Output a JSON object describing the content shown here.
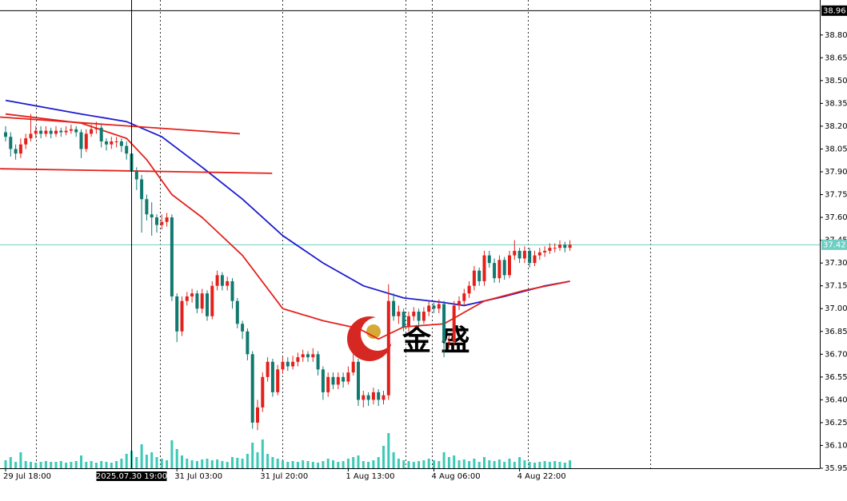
{
  "chart_data": {
    "type": "candlestick",
    "categories": [
      "29 Jul 18:00",
      null,
      null,
      null,
      null,
      null,
      null,
      null,
      null,
      null,
      null,
      null,
      null,
      null,
      null,
      null,
      null,
      null,
      null,
      null,
      null,
      null,
      null,
      null,
      null,
      null,
      null,
      null,
      null,
      null,
      null,
      null,
      null,
      null,
      "31 Jul 03:00",
      null,
      null,
      null,
      null,
      null,
      null,
      null,
      null,
      null,
      null,
      null,
      null,
      null,
      null,
      null,
      null,
      "31 Jul 20:00",
      null,
      null,
      null,
      null,
      null,
      null,
      null,
      null,
      null,
      null,
      null,
      null,
      null,
      null,
      null,
      null,
      "1 Aug 13:00",
      null,
      null,
      null,
      null,
      null,
      null,
      null,
      null,
      null,
      null,
      null,
      null,
      null,
      null,
      null,
      null,
      "4 Aug 06:00",
      null,
      null,
      null,
      null,
      null,
      null,
      null,
      null,
      null,
      null,
      null,
      null,
      null,
      null,
      null,
      null,
      "4 Aug 22:00",
      null,
      null,
      null,
      null,
      null,
      null,
      null,
      null,
      null,
      null
    ],
    "open": [
      38.16,
      38.13,
      38.05,
      38.02,
      38.08,
      38.12,
      38.15,
      38.17,
      38.15,
      38.17,
      38.15,
      38.17,
      38.16,
      38.17,
      38.18,
      38.16,
      38.05,
      38.15,
      38.18,
      38.19,
      38.1,
      38.08,
      38.1,
      38.1,
      38.07,
      38.02,
      37.9,
      37.85,
      37.72,
      37.62,
      37.6,
      37.55,
      37.57,
      37.6,
      37.08,
      36.85,
      37.05,
      37.08,
      37.1,
      37.0,
      37.1,
      36.95,
      37.15,
      37.22,
      37.15,
      37.18,
      37.05,
      36.9,
      36.85,
      36.7,
      36.25,
      36.35,
      36.55,
      36.65,
      36.45,
      36.6,
      36.65,
      36.62,
      36.65,
      36.68,
      36.7,
      36.68,
      36.7,
      36.6,
      36.45,
      36.55,
      36.5,
      36.55,
      36.52,
      36.58,
      36.65,
      36.4,
      36.43,
      36.4,
      36.45,
      36.4,
      36.43,
      37.05,
      36.95,
      36.98,
      36.88,
      36.95,
      36.98,
      36.92,
      36.98,
      37.02,
      37.0,
      37.03,
      36.78,
      36.78,
      37.02,
      37.05,
      37.1,
      37.15,
      37.25,
      37.18,
      37.35,
      37.3,
      37.2,
      37.32,
      37.22,
      37.35,
      37.38,
      37.33,
      37.38,
      37.3,
      37.35,
      37.37,
      37.38,
      37.4,
      37.4,
      37.42,
      37.4
    ],
    "high": [
      38.2,
      38.16,
      38.08,
      38.12,
      38.15,
      38.28,
      38.2,
      38.2,
      38.2,
      38.19,
      38.2,
      38.19,
      38.2,
      38.21,
      38.2,
      38.18,
      38.18,
      38.21,
      38.23,
      38.21,
      38.12,
      38.13,
      38.13,
      38.12,
      38.1,
      38.05,
      37.93,
      37.88,
      37.75,
      37.7,
      37.62,
      37.62,
      37.63,
      37.62,
      37.1,
      37.08,
      37.11,
      37.13,
      37.12,
      37.13,
      37.12,
      37.18,
      37.25,
      37.24,
      37.21,
      37.2,
      37.07,
      36.92,
      36.87,
      36.72,
      36.4,
      36.58,
      36.68,
      36.67,
      36.63,
      36.68,
      36.68,
      36.69,
      36.71,
      36.73,
      36.72,
      36.74,
      36.72,
      36.62,
      36.58,
      36.58,
      36.58,
      36.58,
      36.62,
      36.7,
      36.67,
      36.46,
      36.45,
      36.48,
      36.47,
      36.46,
      37.16,
      37.1,
      37.02,
      37.0,
      36.98,
      37.01,
      37.0,
      37.01,
      37.05,
      37.04,
      37.06,
      37.05,
      36.82,
      37.05,
      37.08,
      37.13,
      37.18,
      37.28,
      37.27,
      37.38,
      37.38,
      37.33,
      37.35,
      37.34,
      37.38,
      37.45,
      37.4,
      37.41,
      37.4,
      37.38,
      37.4,
      37.41,
      37.43,
      37.43,
      37.45,
      37.44,
      37.45
    ],
    "low": [
      38.1,
      38.0,
      37.98,
      37.99,
      38.05,
      38.1,
      38.12,
      38.12,
      38.13,
      38.12,
      38.13,
      38.13,
      38.14,
      38.15,
      38.13,
      37.99,
      38.03,
      38.13,
      38.15,
      38.06,
      38.04,
      38.05,
      38.06,
      38.03,
      37.98,
      37.85,
      37.78,
      37.5,
      37.58,
      37.48,
      37.5,
      37.52,
      37.54,
      37.05,
      36.78,
      36.82,
      37.02,
      37.04,
      36.97,
      36.97,
      36.92,
      36.93,
      37.12,
      37.12,
      37.12,
      37.0,
      36.87,
      36.8,
      36.66,
      36.21,
      36.2,
      36.32,
      36.52,
      36.42,
      36.43,
      36.57,
      36.59,
      36.6,
      36.62,
      36.65,
      36.65,
      36.65,
      36.56,
      36.4,
      36.42,
      36.47,
      36.47,
      36.48,
      36.5,
      36.56,
      36.36,
      36.35,
      36.36,
      36.37,
      36.36,
      36.37,
      36.4,
      36.92,
      36.9,
      36.85,
      36.85,
      36.92,
      36.89,
      36.9,
      36.95,
      36.97,
      36.97,
      36.68,
      36.74,
      36.76,
      36.99,
      37.02,
      37.07,
      37.12,
      37.15,
      37.15,
      37.27,
      37.17,
      37.17,
      37.19,
      37.2,
      37.32,
      37.3,
      37.3,
      37.27,
      37.28,
      37.32,
      37.34,
      37.36,
      37.37,
      37.38,
      37.37,
      37.38
    ],
    "close": [
      38.13,
      38.05,
      38.02,
      38.08,
      38.12,
      38.15,
      38.17,
      38.15,
      38.17,
      38.15,
      38.17,
      38.16,
      38.17,
      38.18,
      38.16,
      38.05,
      38.15,
      38.18,
      38.19,
      38.1,
      38.08,
      38.1,
      38.1,
      38.07,
      38.02,
      37.9,
      37.85,
      37.72,
      37.62,
      37.6,
      37.55,
      37.57,
      37.6,
      37.08,
      36.85,
      37.05,
      37.08,
      37.1,
      37.0,
      37.1,
      36.95,
      37.15,
      37.22,
      37.15,
      37.18,
      37.05,
      36.9,
      36.85,
      36.7,
      36.25,
      36.35,
      36.55,
      36.65,
      36.45,
      36.6,
      36.65,
      36.62,
      36.65,
      36.68,
      36.7,
      36.68,
      36.7,
      36.6,
      36.45,
      36.55,
      36.5,
      36.55,
      36.52,
      36.58,
      36.65,
      36.4,
      36.43,
      36.4,
      36.45,
      36.4,
      36.43,
      37.05,
      36.95,
      36.98,
      36.88,
      36.95,
      36.98,
      36.92,
      36.98,
      37.02,
      37.0,
      37.03,
      36.78,
      36.78,
      37.02,
      37.05,
      37.1,
      37.15,
      37.25,
      37.18,
      37.35,
      37.3,
      37.2,
      37.32,
      37.22,
      37.35,
      37.38,
      37.33,
      37.38,
      37.3,
      37.35,
      37.37,
      37.38,
      37.4,
      37.4,
      37.42,
      37.4,
      37.42
    ],
    "volume": [
      10,
      14,
      8,
      20,
      9,
      8,
      7,
      8,
      9,
      8,
      8,
      9,
      7,
      8,
      9,
      16,
      8,
      9,
      7,
      9,
      8,
      7,
      9,
      12,
      18,
      22,
      14,
      30,
      17,
      20,
      14,
      12,
      10,
      35,
      24,
      16,
      12,
      10,
      9,
      11,
      12,
      10,
      11,
      9,
      8,
      14,
      13,
      12,
      18,
      32,
      20,
      36,
      18,
      14,
      12,
      10,
      8,
      9,
      8,
      10,
      9,
      8,
      7,
      9,
      12,
      10,
      8,
      9,
      12,
      14,
      16,
      9,
      8,
      10,
      14,
      28,
      44,
      20,
      12,
      10,
      9,
      8,
      9,
      10,
      12,
      10,
      9,
      20,
      14,
      16,
      10,
      11,
      9,
      12,
      8,
      14,
      10,
      9,
      11,
      8,
      12,
      8,
      14,
      10,
      8,
      7,
      8,
      9,
      8,
      9,
      8,
      7,
      10
    ],
    "up_color": "#e3211c",
    "down_color": "#11796f",
    "volume_color": "#3cc9b7",
    "lines": [
      {
        "color": "#1c1ccf",
        "x": [
          0,
          15,
          24,
          31,
          39,
          47,
          55,
          63,
          71,
          79,
          87,
          91,
          99,
          107,
          112
        ],
        "values": [
          38.37,
          38.28,
          38.23,
          38.13,
          37.93,
          37.72,
          37.48,
          37.3,
          37.15,
          37.07,
          37.04,
          37.02,
          37.08,
          37.15,
          37.18
        ]
      },
      {
        "color": "#e3211c",
        "x": [
          0,
          15,
          24,
          28,
          33,
          39,
          47,
          55,
          63,
          70,
          74,
          79,
          87,
          95,
          103,
          112
        ],
        "values": [
          38.28,
          38.22,
          38.12,
          37.98,
          37.75,
          37.6,
          37.35,
          37.0,
          36.92,
          36.87,
          36.8,
          36.88,
          36.9,
          37.05,
          37.12,
          37.18
        ]
      },
      {
        "color": "#e3211c",
        "x": [
          -1.1,
          46.5
        ],
        "values": [
          38.26,
          38.15
        ]
      },
      {
        "color": "#e3211c",
        "x": [
          -1.1,
          52.9
        ],
        "values": [
          37.92,
          37.89
        ]
      }
    ],
    "ylim": [
      35.95,
      39.03
    ],
    "yticks": [
      {
        "value": 38.8,
        "label": "38.80"
      },
      38.65,
      {
        "value": 38.5,
        "label": "38.50"
      },
      38.35,
      {
        "value": 38.2,
        "label": "38.20"
      },
      38.05,
      {
        "value": 37.9,
        "label": "37.90"
      },
      37.75,
      {
        "value": 37.6,
        "label": "37.60"
      },
      37.45,
      {
        "value": 37.3,
        "label": "37.30"
      },
      37.15,
      {
        "value": 37,
        "label": "37.00"
      },
      36.85,
      {
        "value": 36.7,
        "label": "36.70"
      },
      36.55,
      {
        "value": 36.4,
        "label": "36.40"
      },
      36.25,
      {
        "value": 36.1,
        "label": "36.10"
      },
      35.95
    ],
    "price_lines": [
      {
        "value": 38.96,
        "color": "#000000"
      },
      {
        "value": 37.42,
        "color": "#6fcfc3"
      }
    ],
    "crosshair": {
      "x": 25,
      "label": "2025.07.30 19:00"
    },
    "watermark": "金 盛"
  }
}
